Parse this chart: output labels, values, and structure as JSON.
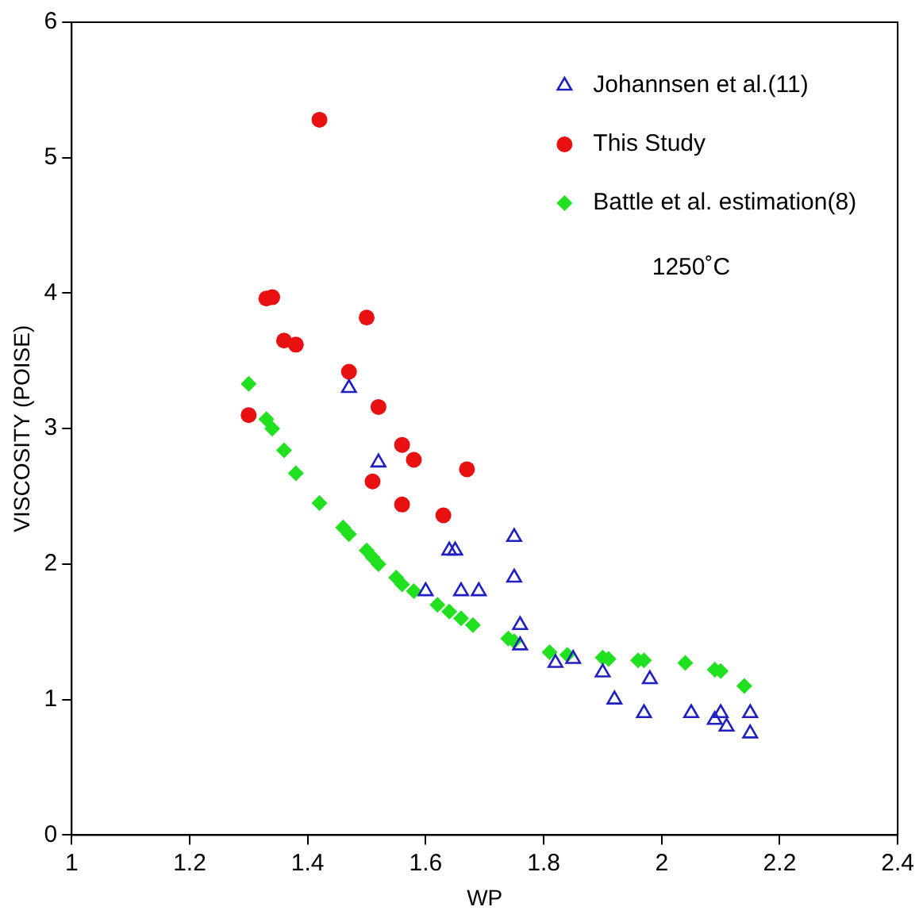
{
  "chart_data": {
    "type": "scatter",
    "xlabel": "WP",
    "ylabel": "VISCOSITY (POISE)",
    "xlim": [
      1,
      2.4
    ],
    "xticks": [
      1,
      1.2,
      1.4,
      1.6,
      1.8,
      2,
      2.2,
      2.4
    ],
    "ylim": [
      0,
      6
    ],
    "yticks": [
      0,
      1,
      2,
      3,
      4,
      5,
      6
    ],
    "grid": false,
    "legend": "top right",
    "annotations": [
      "1250˚C"
    ],
    "series": [
      {
        "name": "Johannsen et al.(11)",
        "color": "#2020c0",
        "marker": "triangle",
        "x": [
          1.47,
          1.52,
          1.6,
          1.64,
          1.65,
          1.66,
          1.69,
          1.75,
          1.75,
          1.76,
          1.76,
          1.82,
          1.85,
          1.9,
          1.92,
          1.97,
          1.98,
          2.05,
          2.09,
          2.1,
          2.11,
          2.15,
          2.15
        ],
        "values": [
          3.3,
          2.75,
          1.8,
          2.1,
          2.1,
          1.8,
          1.8,
          2.2,
          1.9,
          1.55,
          1.4,
          1.27,
          1.3,
          1.2,
          1.0,
          0.9,
          1.15,
          0.9,
          0.85,
          0.9,
          0.8,
          0.9,
          0.75
        ]
      },
      {
        "name": "This Study",
        "color": "#e81010",
        "marker": "circle",
        "x": [
          1.3,
          1.33,
          1.34,
          1.36,
          1.38,
          1.42,
          1.47,
          1.5,
          1.51,
          1.52,
          1.56,
          1.56,
          1.58,
          1.63,
          1.67
        ],
        "values": [
          3.1,
          3.96,
          3.97,
          3.65,
          3.62,
          5.28,
          3.42,
          3.82,
          2.61,
          3.16,
          2.88,
          2.44,
          2.77,
          2.36,
          2.7
        ]
      },
      {
        "name": "Battle et al. estimation(8)",
        "color": "#20e020",
        "marker": "diamond",
        "x": [
          1.3,
          1.33,
          1.34,
          1.36,
          1.38,
          1.42,
          1.46,
          1.47,
          1.5,
          1.51,
          1.52,
          1.55,
          1.56,
          1.58,
          1.62,
          1.64,
          1.66,
          1.68,
          1.74,
          1.75,
          1.81,
          1.84,
          1.9,
          1.91,
          1.96,
          1.97,
          2.04,
          2.09,
          2.1,
          2.14
        ],
        "values": [
          3.33,
          3.07,
          3.0,
          2.84,
          2.67,
          2.45,
          2.27,
          2.22,
          2.1,
          2.05,
          2.0,
          1.9,
          1.85,
          1.8,
          1.7,
          1.65,
          1.6,
          1.55,
          1.45,
          1.43,
          1.35,
          1.33,
          1.31,
          1.3,
          1.29,
          1.29,
          1.27,
          1.22,
          1.21,
          1.1
        ]
      }
    ]
  }
}
